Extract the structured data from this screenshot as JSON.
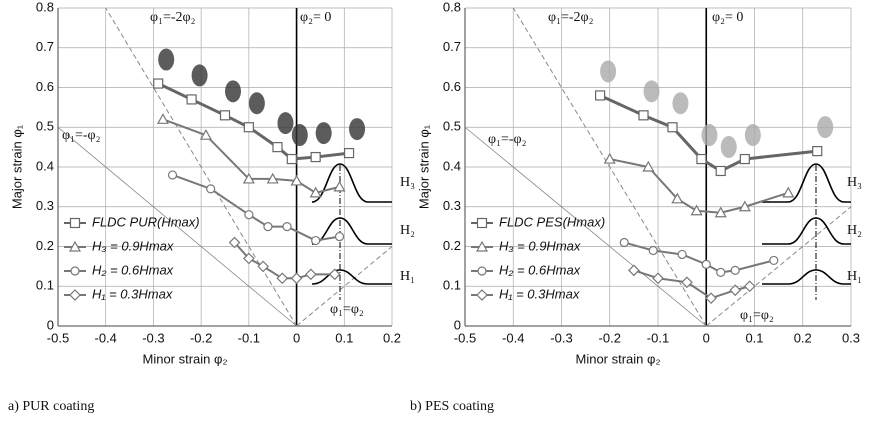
{
  "chart_data": [
    {
      "type": "line",
      "caption": "a) PUR coating",
      "xlabel": "Minor strain φ₂",
      "ylabel": "Major strain φ₁",
      "xlim": [
        -0.5,
        0.2
      ],
      "ylim": [
        0,
        0.8
      ],
      "xticks": [
        -0.5,
        -0.4,
        -0.3,
        -0.2,
        -0.1,
        0,
        0.1,
        0.2
      ],
      "yticks": [
        0,
        0.1,
        0.2,
        0.3,
        0.4,
        0.5,
        0.6,
        0.7,
        0.8
      ],
      "grid": true,
      "annotations": [
        "φ₁=-2φ₂",
        "φ₂= 0",
        "φ₁=-φ₂",
        "φ₁=φ₂"
      ],
      "height_labels": [
        "H₃",
        "H₂",
        "H₁"
      ],
      "series": [
        {
          "name": "FLDC PUR(Hmax)",
          "marker": "square",
          "color": "#666666",
          "x": [
            -0.29,
            -0.22,
            -0.15,
            -0.1,
            -0.04,
            -0.01,
            0.04,
            0.11
          ],
          "values": [
            0.61,
            0.57,
            0.53,
            0.5,
            0.45,
            0.42,
            0.425,
            0.435
          ]
        },
        {
          "name": "H₃ = 0.9Hmax",
          "marker": "triangle",
          "color": "#777777",
          "x": [
            -0.28,
            -0.19,
            -0.1,
            -0.05,
            0,
            0.04,
            0.09
          ],
          "values": [
            0.52,
            0.48,
            0.37,
            0.37,
            0.365,
            0.335,
            0.35
          ]
        },
        {
          "name": "H₂ = 0.6Hmax",
          "marker": "circle",
          "color": "#777777",
          "x": [
            -0.26,
            -0.18,
            -0.1,
            -0.06,
            -0.02,
            0.04,
            0.09
          ],
          "values": [
            0.38,
            0.345,
            0.28,
            0.25,
            0.25,
            0.215,
            0.225
          ]
        },
        {
          "name": "H₁ = 0.3Hmax",
          "marker": "diamond",
          "color": "#777777",
          "x": [
            -0.13,
            -0.1,
            -0.07,
            -0.03,
            0,
            0.03,
            0.08
          ],
          "values": [
            0.21,
            0.17,
            0.15,
            0.12,
            0.12,
            0.13,
            0.13
          ]
        }
      ]
    },
    {
      "type": "line",
      "caption": "b) PES coating",
      "xlabel": "Minor strain φ₂",
      "ylabel": "Major strain φ₁",
      "xlim": [
        -0.5,
        0.3
      ],
      "ylim": [
        0,
        0.8
      ],
      "xticks": [
        -0.5,
        -0.4,
        -0.3,
        -0.2,
        -0.1,
        0,
        0.1,
        0.2,
        0.3
      ],
      "yticks": [
        0,
        0.1,
        0.2,
        0.3,
        0.4,
        0.5,
        0.6,
        0.7,
        0.8
      ],
      "grid": true,
      "annotations": [
        "φ₁=-2φ₂",
        "φ₂= 0",
        "φ₁=-φ₂",
        "φ₁=φ₂"
      ],
      "height_labels": [
        "H₃",
        "H₂",
        "H₁"
      ],
      "series": [
        {
          "name": "FLDC PES(Hmax)",
          "marker": "square",
          "color": "#666666",
          "x": [
            -0.22,
            -0.13,
            -0.07,
            -0.01,
            0.03,
            0.08,
            0.23
          ],
          "values": [
            0.58,
            0.53,
            0.5,
            0.42,
            0.39,
            0.42,
            0.44
          ]
        },
        {
          "name": "H₃ = 0.9Hmax",
          "marker": "triangle",
          "color": "#777777",
          "x": [
            -0.2,
            -0.12,
            -0.06,
            -0.02,
            0.03,
            0.08,
            0.17
          ],
          "values": [
            0.42,
            0.4,
            0.32,
            0.29,
            0.285,
            0.3,
            0.335
          ]
        },
        {
          "name": "H₂ = 0.6Hmax",
          "marker": "circle",
          "color": "#777777",
          "x": [
            -0.17,
            -0.11,
            -0.05,
            0,
            0.03,
            0.06,
            0.14
          ],
          "values": [
            0.21,
            0.19,
            0.18,
            0.155,
            0.135,
            0.14,
            0.165
          ]
        },
        {
          "name": "H₁ = 0.3Hmax",
          "marker": "diamond",
          "color": "#777777",
          "x": [
            -0.15,
            -0.1,
            -0.04,
            0.01,
            0.06,
            0.09
          ],
          "values": [
            0.14,
            0.12,
            0.11,
            0.07,
            0.09,
            0.1
          ]
        }
      ]
    }
  ]
}
